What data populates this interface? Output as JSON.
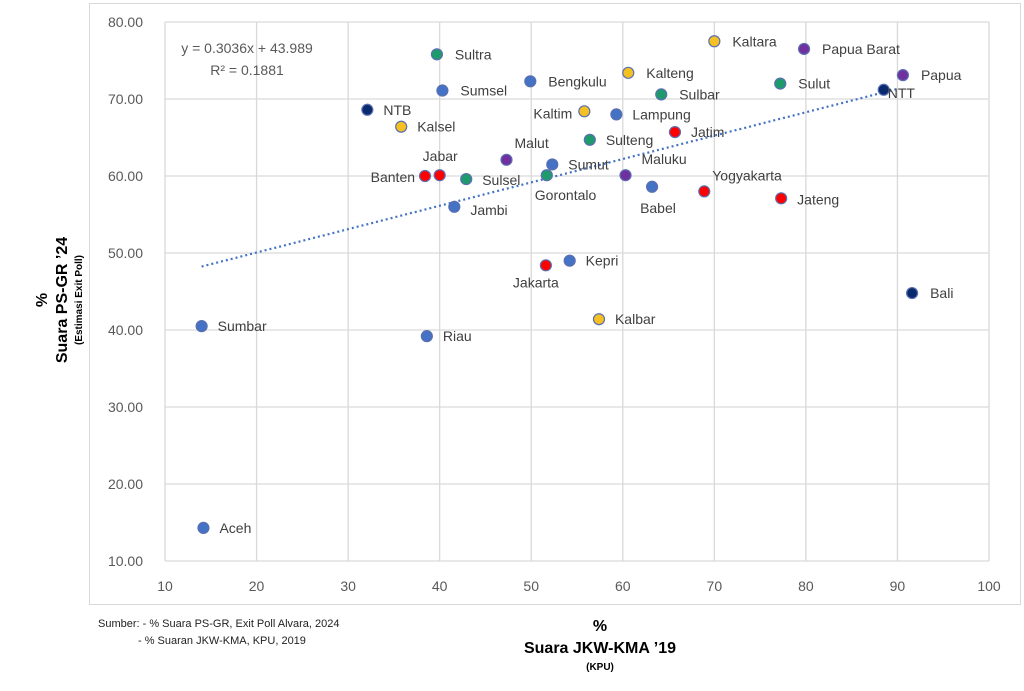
{
  "chart_data": {
    "type": "scatter",
    "title": "",
    "xlabel": {
      "prefix": "%",
      "main": "Suara JKW-KMA ’19",
      "sub": "(KPU)"
    },
    "ylabel": {
      "prefix": "%",
      "main": "Suara PS-GR ’24",
      "sub": "(Estimasi Exit Poll)"
    },
    "xlim": [
      10,
      100
    ],
    "ylim": [
      10,
      80
    ],
    "x_ticks": [
      "10",
      "20",
      "30",
      "40",
      "50",
      "60",
      "70",
      "80",
      "90",
      "100"
    ],
    "y_ticks": [
      "10.00",
      "20.00",
      "30.00",
      "40.00",
      "50.00",
      "60.00",
      "70.00",
      "80.00"
    ],
    "grid": true,
    "legend": "none",
    "trendline": {
      "type": "linear",
      "slope": 0.3036,
      "intercept": 43.989,
      "x_range": [
        14,
        90
      ],
      "equation_label": "y = 0.3036x + 43.989",
      "r2_label": "R² = 0.1881",
      "color": "#4472c4",
      "style": "dotted"
    },
    "group_colors": {
      "blue": "#4472c4",
      "green": "#1e9a6c",
      "yellow": "#f5c021",
      "red": "#ff0000",
      "purple": "#7030a0",
      "navy": "#0a2a6e"
    },
    "points": [
      {
        "label": "Aceh",
        "x": 14.2,
        "y": 14.3,
        "group": "blue"
      },
      {
        "label": "Sumbar",
        "x": 14.0,
        "y": 40.5,
        "group": "blue"
      },
      {
        "label": "Riau",
        "x": 38.6,
        "y": 39.2,
        "group": "blue"
      },
      {
        "label": "Kepri",
        "x": 54.2,
        "y": 49.0,
        "group": "blue"
      },
      {
        "label": "Jakarta",
        "x": 51.6,
        "y": 48.4,
        "group": "red"
      },
      {
        "label": "Kalbar",
        "x": 57.4,
        "y": 41.4,
        "group": "yellow"
      },
      {
        "label": "Bali",
        "x": 91.6,
        "y": 44.8,
        "group": "navy"
      },
      {
        "label": "Jambi",
        "x": 41.6,
        "y": 56.0,
        "group": "blue"
      },
      {
        "label": "Banten",
        "x": 38.4,
        "y": 60.0,
        "group": "red"
      },
      {
        "label": "Jabar",
        "x": 40.0,
        "y": 60.1,
        "group": "red"
      },
      {
        "label": "Sulsel",
        "x": 42.9,
        "y": 59.6,
        "group": "green"
      },
      {
        "label": "Malut",
        "x": 47.3,
        "y": 62.1,
        "group": "purple"
      },
      {
        "label": "Sumut",
        "x": 52.3,
        "y": 61.5,
        "group": "blue"
      },
      {
        "label": "Gorontalo",
        "x": 51.7,
        "y": 60.1,
        "group": "green"
      },
      {
        "label": "Maluku",
        "x": 60.3,
        "y": 60.1,
        "group": "purple"
      },
      {
        "label": "Babel",
        "x": 63.2,
        "y": 58.6,
        "group": "blue"
      },
      {
        "label": "Yogyakarta",
        "x": 68.9,
        "y": 58.0,
        "group": "red"
      },
      {
        "label": "Jateng",
        "x": 77.3,
        "y": 57.1,
        "group": "red"
      },
      {
        "label": "Sulteng",
        "x": 56.4,
        "y": 64.7,
        "group": "green"
      },
      {
        "label": "Jatim",
        "x": 65.7,
        "y": 65.7,
        "group": "red"
      },
      {
        "label": "Kaltim",
        "x": 55.8,
        "y": 68.4,
        "group": "yellow"
      },
      {
        "label": "Lampung",
        "x": 59.3,
        "y": 68.0,
        "group": "blue"
      },
      {
        "label": "NTB",
        "x": 32.1,
        "y": 68.6,
        "group": "navy"
      },
      {
        "label": "Kalsel",
        "x": 35.8,
        "y": 66.4,
        "group": "yellow"
      },
      {
        "label": "Sumsel",
        "x": 40.3,
        "y": 71.1,
        "group": "blue"
      },
      {
        "label": "Bengkulu",
        "x": 49.9,
        "y": 72.3,
        "group": "blue"
      },
      {
        "label": "Sultra",
        "x": 39.7,
        "y": 75.8,
        "group": "green"
      },
      {
        "label": "Kalteng",
        "x": 60.6,
        "y": 73.4,
        "group": "yellow"
      },
      {
        "label": "Sulbar",
        "x": 64.2,
        "y": 70.6,
        "group": "green"
      },
      {
        "label": "Kaltara",
        "x": 70.0,
        "y": 77.5,
        "group": "yellow"
      },
      {
        "label": "Papua Barat",
        "x": 79.8,
        "y": 76.5,
        "group": "purple"
      },
      {
        "label": "Sulut",
        "x": 77.2,
        "y": 72.0,
        "group": "green"
      },
      {
        "label": "Papua",
        "x": 90.6,
        "y": 73.1,
        "group": "purple"
      },
      {
        "label": "NTT",
        "x": 88.5,
        "y": 71.2,
        "group": "navy"
      }
    ]
  },
  "source_note": {
    "line1": "Sumber: - % Suara PS-GR, Exit Poll Alvara, 2024",
    "line2": "-  % Suaran JKW-KMA, KPU, 2019"
  }
}
